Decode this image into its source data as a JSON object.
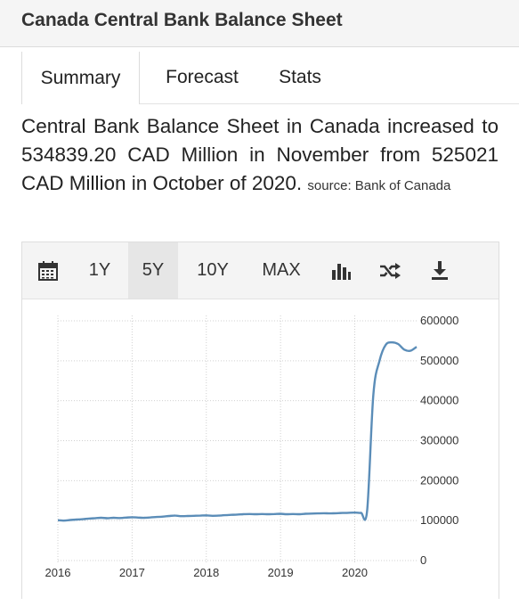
{
  "header": {
    "title": "Canada Central Bank Balance Sheet"
  },
  "tabs": [
    {
      "label": "Summary"
    },
    {
      "label": "Forecast"
    },
    {
      "label": "Stats"
    }
  ],
  "summary": {
    "text": "Central Bank Balance Sheet in Canada increased to 534839.20 CAD Million in November from 525021 CAD Million in October of 2020.",
    "source": "source: Bank of Canada"
  },
  "toolbar": {
    "calendar_icon": "calendar-icon",
    "ranges": [
      "1Y",
      "5Y",
      "10Y",
      "MAX"
    ],
    "selected_range": "5Y",
    "bar_chart_icon": "bar-chart-icon",
    "shuffle_icon": "shuffle-icon",
    "download_icon": "download-icon"
  },
  "chart_data": {
    "type": "line",
    "title": "",
    "xlabel": "",
    "ylabel": "",
    "x_ticks": [
      "2016",
      "2017",
      "2018",
      "2019",
      "2020"
    ],
    "y_ticks": [
      "0",
      "100000",
      "200000",
      "300000",
      "400000",
      "500000",
      "600000"
    ],
    "ylim": [
      0,
      600000
    ],
    "xlim": [
      "2016-01",
      "2020-11"
    ],
    "grid": true,
    "line_color": "#5b8db8",
    "series": [
      {
        "name": "",
        "points": [
          [
            "2016-01",
            101000
          ],
          [
            "2016-02",
            100000
          ],
          [
            "2016-03",
            101500
          ],
          [
            "2016-04",
            102500
          ],
          [
            "2016-05",
            103500
          ],
          [
            "2016-06",
            105000
          ],
          [
            "2016-07",
            106000
          ],
          [
            "2016-08",
            107000
          ],
          [
            "2016-09",
            106000
          ],
          [
            "2016-10",
            107000
          ],
          [
            "2016-11",
            106500
          ],
          [
            "2016-12",
            107500
          ],
          [
            "2017-01",
            108500
          ],
          [
            "2017-02",
            107500
          ],
          [
            "2017-03",
            107000
          ],
          [
            "2017-04",
            108000
          ],
          [
            "2017-05",
            109000
          ],
          [
            "2017-06",
            110000
          ],
          [
            "2017-07",
            111500
          ],
          [
            "2017-08",
            112500
          ],
          [
            "2017-09",
            111000
          ],
          [
            "2017-10",
            111500
          ],
          [
            "2017-11",
            112000
          ],
          [
            "2017-12",
            112500
          ],
          [
            "2018-01",
            113000
          ],
          [
            "2018-02",
            112000
          ],
          [
            "2018-03",
            112500
          ],
          [
            "2018-04",
            113500
          ],
          [
            "2018-05",
            114500
          ],
          [
            "2018-06",
            115000
          ],
          [
            "2018-07",
            116000
          ],
          [
            "2018-08",
            116500
          ],
          [
            "2018-09",
            116000
          ],
          [
            "2018-10",
            116500
          ],
          [
            "2018-11",
            116000
          ],
          [
            "2018-12",
            116500
          ],
          [
            "2019-01",
            117000
          ],
          [
            "2019-02",
            116000
          ],
          [
            "2019-03",
            116500
          ],
          [
            "2019-04",
            116000
          ],
          [
            "2019-05",
            117000
          ],
          [
            "2019-06",
            117500
          ],
          [
            "2019-07",
            118000
          ],
          [
            "2019-08",
            118500
          ],
          [
            "2019-09",
            118000
          ],
          [
            "2019-10",
            118500
          ],
          [
            "2019-11",
            119000
          ],
          [
            "2019-12",
            119500
          ],
          [
            "2020-01",
            120000
          ],
          [
            "2020-02",
            119500
          ],
          [
            "2020-03",
            125000
          ],
          [
            "2020-04",
            415000
          ],
          [
            "2020-05",
            500000
          ],
          [
            "2020-06",
            540000
          ],
          [
            "2020-07",
            546000
          ],
          [
            "2020-08",
            542000
          ],
          [
            "2020-09",
            528000
          ],
          [
            "2020-10",
            525021
          ],
          [
            "2020-11",
            534839.2
          ]
        ]
      }
    ]
  }
}
